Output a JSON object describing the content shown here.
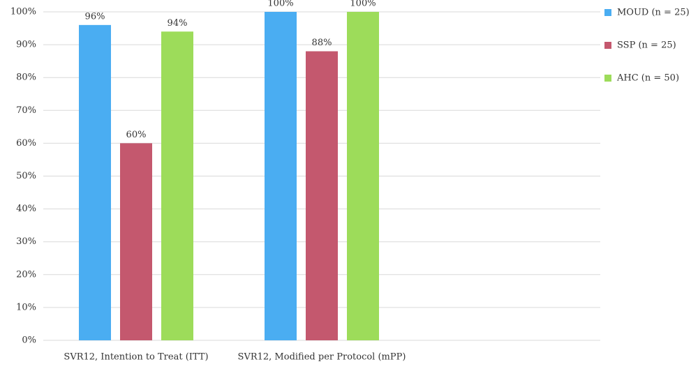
{
  "chart_data": {
    "type": "bar",
    "categories": [
      "SVR12, Intention to Treat (ITT)",
      "SVR12, Modified per Protocol (mPP)"
    ],
    "series": [
      {
        "name": "MOUD (n = 25)",
        "color": "#4aadf2",
        "values": [
          96,
          100
        ],
        "value_labels": [
          "96%",
          "100%"
        ]
      },
      {
        "name": "SSP (n = 25)",
        "color": "#c4586e",
        "values": [
          60,
          88
        ],
        "value_labels": [
          "60%",
          "88%"
        ]
      },
      {
        "name": "AHC (n = 50)",
        "color": "#9ddc5a",
        "values": [
          94,
          100
        ],
        "value_labels": [
          "94%",
          "100%"
        ]
      }
    ],
    "ylim": [
      0,
      100
    ],
    "yticks": [
      {
        "value": 0,
        "label": "0%"
      },
      {
        "value": 10,
        "label": "10%"
      },
      {
        "value": 20,
        "label": "20%"
      },
      {
        "value": 30,
        "label": "30%"
      },
      {
        "value": 40,
        "label": "40%"
      },
      {
        "value": 50,
        "label": "50%"
      },
      {
        "value": 60,
        "label": "60%"
      },
      {
        "value": 70,
        "label": "70%"
      },
      {
        "value": 80,
        "label": "80%"
      },
      {
        "value": 90,
        "label": "90%"
      },
      {
        "value": 100,
        "label": "100%"
      }
    ],
    "grid": true,
    "legend": "right"
  }
}
